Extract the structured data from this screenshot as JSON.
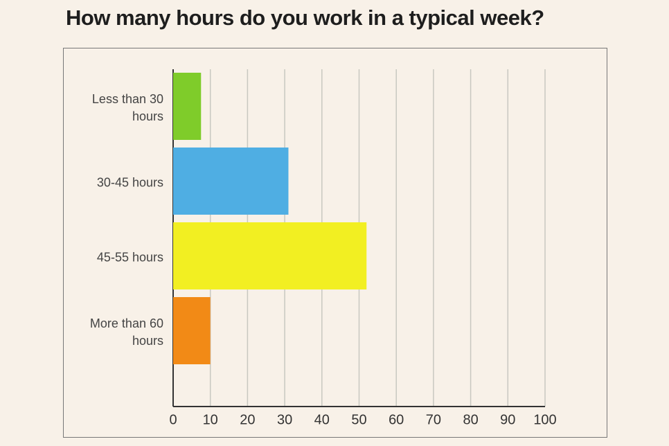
{
  "chart_data": {
    "type": "barh",
    "title": "How many hours do you work in a typical week?",
    "categories": [
      "Less than 30 hours",
      "30-45 hours",
      "45-55 hours",
      "More than 60 hours"
    ],
    "values": [
      7.5,
      31,
      52,
      10
    ],
    "colors": [
      "#7fcc2a",
      "#4faee3",
      "#f2ef22",
      "#f28a16"
    ],
    "xlim": [
      0,
      100
    ],
    "xticks": [
      0,
      10,
      20,
      30,
      40,
      50,
      60,
      70,
      80,
      90,
      100
    ],
    "grid": true
  }
}
